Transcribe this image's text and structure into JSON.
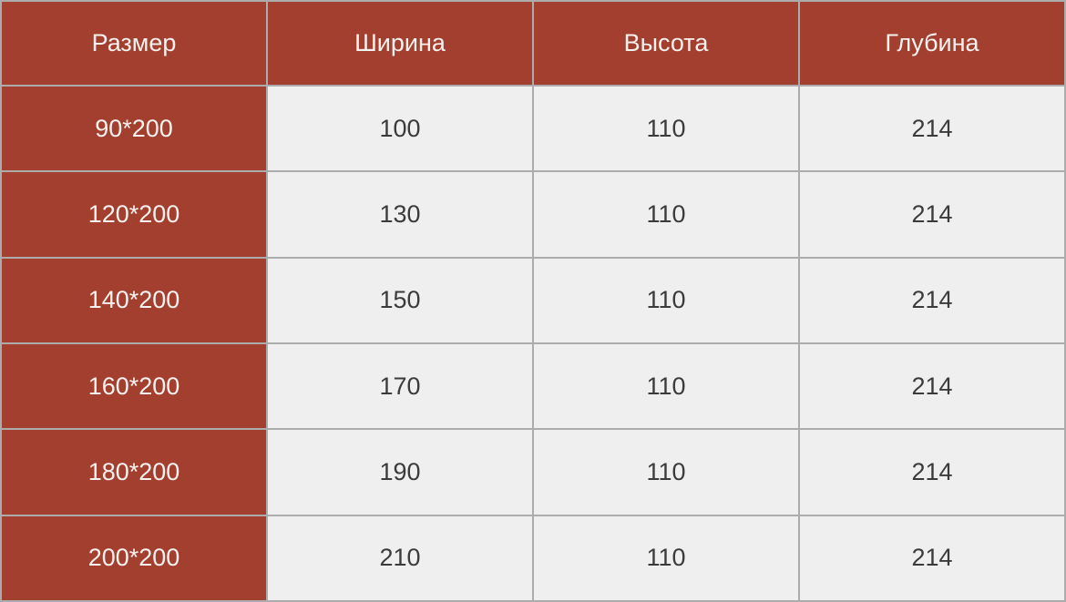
{
  "table": {
    "columns": [
      {
        "label": "Размер"
      },
      {
        "label": "Ширина"
      },
      {
        "label": "Высота"
      },
      {
        "label": "Глубина"
      }
    ],
    "rows": [
      {
        "size": "90*200",
        "width": "100",
        "height": "110",
        "depth": "214"
      },
      {
        "size": "120*200",
        "width": "130",
        "height": "110",
        "depth": "214"
      },
      {
        "size": "140*200",
        "width": "150",
        "height": "110",
        "depth": "214"
      },
      {
        "size": "160*200",
        "width": "170",
        "height": "110",
        "depth": "214"
      },
      {
        "size": "180*200",
        "width": "190",
        "height": "110",
        "depth": "214"
      },
      {
        "size": "200*200",
        "width": "210",
        "height": "110",
        "depth": "214"
      }
    ]
  },
  "colors": {
    "accent_red": "#a23f2e",
    "cell_gray": "#efefef",
    "border_gray": "#acacac",
    "header_text": "#f7f1ef",
    "cell_text": "#3b3b3b"
  },
  "chart_data": {
    "type": "table",
    "title": "",
    "columns": [
      "Размер",
      "Ширина",
      "Высота",
      "Глубина"
    ],
    "rows": [
      [
        "90*200",
        100,
        110,
        214
      ],
      [
        "120*200",
        130,
        110,
        214
      ],
      [
        "140*200",
        150,
        110,
        214
      ],
      [
        "160*200",
        170,
        110,
        214
      ],
      [
        "180*200",
        190,
        110,
        214
      ],
      [
        "200*200",
        210,
        110,
        214
      ]
    ]
  }
}
